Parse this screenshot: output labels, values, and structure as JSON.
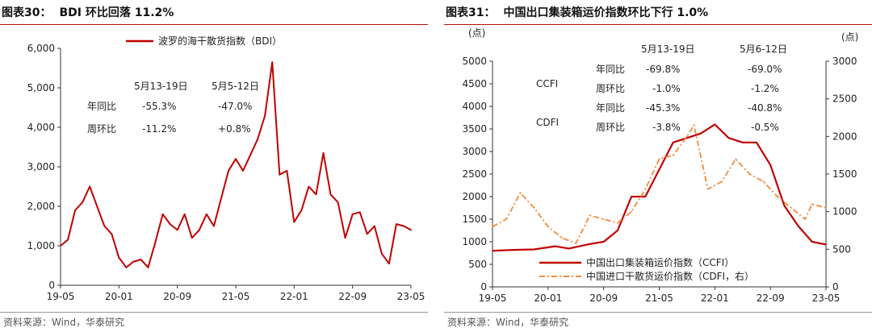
{
  "left": {
    "figure_no": "图表30：",
    "figure_title": "BDI 环比回落 11.2%",
    "source": "资料来源：Wind，华泰研究",
    "annotations": {
      "col1": "5月13-19日",
      "col2": "5月5-12日",
      "rows": [
        {
          "label": "年同比",
          "v1": "-55.3%",
          "v2": "-47.0%"
        },
        {
          "label": "周环比",
          "v1": "-11.2%",
          "v2": "+0.8%"
        }
      ]
    },
    "line_color": "#c00000"
  },
  "right": {
    "figure_no": "图表31：",
    "figure_title": "中国出口集装箱运价指数环比下行 1.0%",
    "source": "资料来源：Wind，华泰研究",
    "left_unit": "(点)",
    "right_unit": "(点)",
    "annotations": {
      "col1": "5月13-19日",
      "col2": "5月6-12日",
      "groups": [
        {
          "name": "CCFI",
          "rows": [
            {
              "label": "年同比",
              "v1": "-69.8%",
              "v2": "-69.0%"
            },
            {
              "label": "周环比",
              "v1": "-1.0%",
              "v2": "-1.2%"
            }
          ]
        },
        {
          "name": "CDFI",
          "rows": [
            {
              "label": "年同比",
              "v1": "-45.3%",
              "v2": "-40.8%"
            },
            {
              "label": "周环比",
              "v1": "-3.8%",
              "v2": "-0.5%"
            }
          ]
        }
      ]
    },
    "colors": {
      "ccfi": "#c00000",
      "cdfi": "#f08c3c"
    }
  },
  "chart_data": [
    {
      "type": "line",
      "title": "",
      "xlabel": "",
      "ylabel": "",
      "x_ticks": [
        "19-05",
        "20-01",
        "20-09",
        "21-05",
        "22-01",
        "22-09",
        "23-05"
      ],
      "y_ticks": [
        "0",
        "1,000",
        "2,000",
        "3,000",
        "4,000",
        "5,000",
        "6,000"
      ],
      "ylim": [
        0,
        6000
      ],
      "grid": false,
      "legend": "top-center",
      "series": [
        {
          "name": "波罗的海干散货指数（BDI）",
          "points": [
            [
              "2019-05",
              1000
            ],
            [
              "2019-06",
              1150
            ],
            [
              "2019-07",
              1900
            ],
            [
              "2019-08",
              2100
            ],
            [
              "2019-09",
              2500
            ],
            [
              "2019-10",
              2000
            ],
            [
              "2019-11",
              1500
            ],
            [
              "2019-12",
              1300
            ],
            [
              "2020-01",
              700
            ],
            [
              "2020-02",
              450
            ],
            [
              "2020-03",
              600
            ],
            [
              "2020-04",
              650
            ],
            [
              "2020-05",
              450
            ],
            [
              "2020-06",
              1100
            ],
            [
              "2020-07",
              1800
            ],
            [
              "2020-08",
              1550
            ],
            [
              "2020-09",
              1400
            ],
            [
              "2020-10",
              1800
            ],
            [
              "2020-11",
              1200
            ],
            [
              "2020-12",
              1400
            ],
            [
              "2021-01",
              1800
            ],
            [
              "2021-02",
              1500
            ],
            [
              "2021-03",
              2200
            ],
            [
              "2021-04",
              2900
            ],
            [
              "2021-05",
              3200
            ],
            [
              "2021-06",
              2900
            ],
            [
              "2021-07",
              3300
            ],
            [
              "2021-08",
              3700
            ],
            [
              "2021-09",
              4300
            ],
            [
              "2021-10",
              5650
            ],
            [
              "2021-11",
              2800
            ],
            [
              "2021-12",
              2900
            ],
            [
              "2022-01",
              1600
            ],
            [
              "2022-02",
              1900
            ],
            [
              "2022-03",
              2500
            ],
            [
              "2022-04",
              2300
            ],
            [
              "2022-05",
              3350
            ],
            [
              "2022-06",
              2300
            ],
            [
              "2022-07",
              2100
            ],
            [
              "2022-08",
              1200
            ],
            [
              "2022-09",
              1800
            ],
            [
              "2022-10",
              1850
            ],
            [
              "2022-11",
              1300
            ],
            [
              "2022-12",
              1500
            ],
            [
              "2023-01",
              800
            ],
            [
              "2023-02",
              550
            ],
            [
              "2023-03",
              1550
            ],
            [
              "2023-04",
              1500
            ],
            [
              "2023-05",
              1400
            ]
          ]
        }
      ]
    },
    {
      "type": "line",
      "title": "",
      "xlabel": "",
      "ylabel": "(点)",
      "y2label": "(点)",
      "x_ticks": [
        "19-05",
        "20-01",
        "20-09",
        "21-05",
        "22-01",
        "22-09",
        "23-05"
      ],
      "y_ticks": [
        "0",
        "500",
        "1000",
        "1500",
        "2000",
        "2500",
        "3000",
        "3500",
        "4000",
        "4500",
        "5000"
      ],
      "y2_ticks": [
        "0",
        "500",
        "1000",
        "1500",
        "2000",
        "2500",
        "3000"
      ],
      "ylim": [
        0,
        5000
      ],
      "y2lim": [
        0,
        3000
      ],
      "grid": false,
      "legend": "bottom-center",
      "series": [
        {
          "name": "中国出口集装箱运价指数（CCFI）",
          "axis": "left",
          "points": [
            [
              "2019-05",
              800
            ],
            [
              "2019-08",
              820
            ],
            [
              "2019-11",
              830
            ],
            [
              "2020-02",
              900
            ],
            [
              "2020-04",
              850
            ],
            [
              "2020-07",
              950
            ],
            [
              "2020-09",
              1000
            ],
            [
              "2020-11",
              1250
            ],
            [
              "2021-01",
              2000
            ],
            [
              "2021-03",
              2000
            ],
            [
              "2021-05",
              2600
            ],
            [
              "2021-07",
              3200
            ],
            [
              "2021-09",
              3300
            ],
            [
              "2021-11",
              3400
            ],
            [
              "2022-01",
              3600
            ],
            [
              "2022-03",
              3300
            ],
            [
              "2022-05",
              3200
            ],
            [
              "2022-07",
              3200
            ],
            [
              "2022-09",
              2700
            ],
            [
              "2022-11",
              1800
            ],
            [
              "2023-01",
              1350
            ],
            [
              "2023-03",
              1000
            ],
            [
              "2023-05",
              940
            ]
          ]
        },
        {
          "name": "中国进口干散货运价指数（CDFI，右）",
          "axis": "right",
          "points": [
            [
              "2019-05",
              800
            ],
            [
              "2019-07",
              900
            ],
            [
              "2019-09",
              1250
            ],
            [
              "2019-11",
              1050
            ],
            [
              "2020-01",
              800
            ],
            [
              "2020-03",
              650
            ],
            [
              "2020-05",
              580
            ],
            [
              "2020-07",
              950
            ],
            [
              "2020-09",
              900
            ],
            [
              "2020-11",
              850
            ],
            [
              "2021-01",
              1000
            ],
            [
              "2021-03",
              1300
            ],
            [
              "2021-05",
              1700
            ],
            [
              "2021-07",
              1750
            ],
            [
              "2021-09",
              2000
            ],
            [
              "2021-10",
              2150
            ],
            [
              "2021-12",
              1300
            ],
            [
              "2022-02",
              1400
            ],
            [
              "2022-04",
              1700
            ],
            [
              "2022-06",
              1500
            ],
            [
              "2022-08",
              1400
            ],
            [
              "2022-10",
              1200
            ],
            [
              "2022-12",
              1050
            ],
            [
              "2023-02",
              900
            ],
            [
              "2023-03",
              1100
            ],
            [
              "2023-05",
              1050
            ]
          ]
        }
      ]
    }
  ]
}
